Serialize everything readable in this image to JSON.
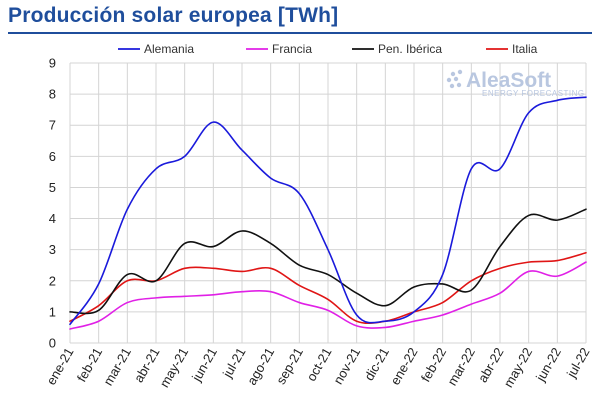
{
  "header": {
    "title": "Producción solar europea [TWh]"
  },
  "watermark": {
    "name": "AleaSoft",
    "tagline": "ENERGY FORECASTING"
  },
  "chart_data": {
    "type": "line",
    "title": "Producción solar europea [TWh]",
    "xlabel": "",
    "ylabel": "",
    "ylim": [
      0,
      9
    ],
    "yticks": [
      0,
      1,
      2,
      3,
      4,
      5,
      6,
      7,
      8,
      9
    ],
    "grid": true,
    "legend_position": "top",
    "categories": [
      "ene-21",
      "feb-21",
      "mar-21",
      "abr-21",
      "may-21",
      "jun-21",
      "jul-21",
      "ago-21",
      "sep-21",
      "oct-21",
      "nov-21",
      "dic-21",
      "ene-22",
      "feb-22",
      "mar-22",
      "abr-22",
      "may-22",
      "jun-22",
      "jul-22"
    ],
    "series": [
      {
        "name": "Alemania",
        "color": "#1a1adb",
        "values": [
          0.6,
          1.9,
          4.3,
          5.6,
          6.0,
          7.1,
          6.2,
          5.3,
          4.8,
          3.0,
          0.9,
          0.7,
          1.0,
          2.2,
          5.6,
          5.6,
          7.4,
          7.8,
          7.9
        ]
      },
      {
        "name": "Francia",
        "color": "#e020e6",
        "values": [
          0.45,
          0.7,
          1.3,
          1.45,
          1.5,
          1.55,
          1.65,
          1.65,
          1.3,
          1.05,
          0.55,
          0.5,
          0.7,
          0.9,
          1.25,
          1.6,
          2.3,
          2.15,
          2.6
        ]
      },
      {
        "name": "Pen. Ibérica",
        "color": "#111111",
        "values": [
          1.0,
          1.05,
          2.2,
          2.0,
          3.2,
          3.1,
          3.6,
          3.2,
          2.5,
          2.2,
          1.6,
          1.2,
          1.8,
          1.9,
          1.7,
          3.1,
          4.1,
          3.95,
          4.3
        ]
      },
      {
        "name": "Italia",
        "color": "#e01515",
        "values": [
          0.7,
          1.2,
          2.0,
          2.0,
          2.4,
          2.4,
          2.3,
          2.4,
          1.85,
          1.4,
          0.7,
          0.7,
          1.0,
          1.3,
          2.0,
          2.4,
          2.6,
          2.65,
          2.9
        ]
      }
    ]
  }
}
